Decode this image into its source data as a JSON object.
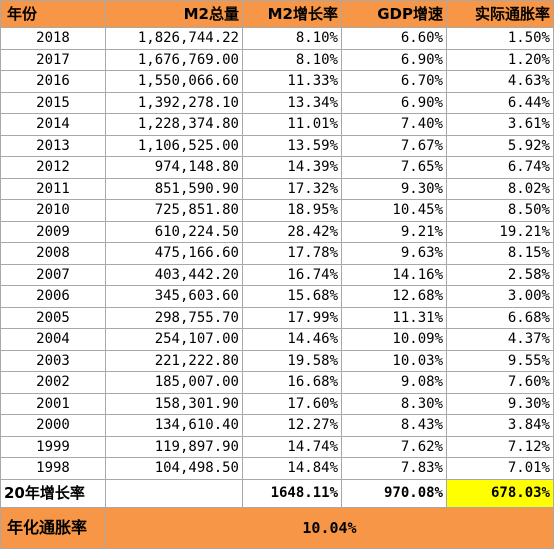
{
  "headers": [
    "年份",
    "M2总量",
    "M2增长率",
    "GDP增速",
    "实际通胀率"
  ],
  "rows": [
    [
      "2018",
      "1,826,744.22",
      "8.10%",
      "6.60%",
      "1.50%"
    ],
    [
      "2017",
      "1,676,769.00",
      "8.10%",
      "6.90%",
      "1.20%"
    ],
    [
      "2016",
      "1,550,066.60",
      "11.33%",
      "6.70%",
      "4.63%"
    ],
    [
      "2015",
      "1,392,278.10",
      "13.34%",
      "6.90%",
      "6.44%"
    ],
    [
      "2014",
      "1,228,374.80",
      "11.01%",
      "7.40%",
      "3.61%"
    ],
    [
      "2013",
      "1,106,525.00",
      "13.59%",
      "7.67%",
      "5.92%"
    ],
    [
      "2012",
      "974,148.80",
      "14.39%",
      "7.65%",
      "6.74%"
    ],
    [
      "2011",
      "851,590.90",
      "17.32%",
      "9.30%",
      "8.02%"
    ],
    [
      "2010",
      "725,851.80",
      "18.95%",
      "10.45%",
      "8.50%"
    ],
    [
      "2009",
      "610,224.50",
      "28.42%",
      "9.21%",
      "19.21%"
    ],
    [
      "2008",
      "475,166.60",
      "17.78%",
      "9.63%",
      "8.15%"
    ],
    [
      "2007",
      "403,442.20",
      "16.74%",
      "14.16%",
      "2.58%"
    ],
    [
      "2006",
      "345,603.60",
      "15.68%",
      "12.68%",
      "3.00%"
    ],
    [
      "2005",
      "298,755.70",
      "17.99%",
      "11.31%",
      "6.68%"
    ],
    [
      "2004",
      "254,107.00",
      "14.46%",
      "10.09%",
      "4.37%"
    ],
    [
      "2003",
      "221,222.80",
      "19.58%",
      "10.03%",
      "9.55%"
    ],
    [
      "2002",
      "185,007.00",
      "16.68%",
      "9.08%",
      "7.60%"
    ],
    [
      "2001",
      "158,301.90",
      "17.60%",
      "8.30%",
      "9.30%"
    ],
    [
      "2000",
      "134,610.40",
      "12.27%",
      "8.43%",
      "3.84%"
    ],
    [
      "1999",
      "119,897.90",
      "14.74%",
      "7.62%",
      "7.12%"
    ],
    [
      "1998",
      "104,498.50",
      "14.84%",
      "7.83%",
      "7.01%"
    ]
  ],
  "summary": {
    "label": "20年增长率",
    "m2_total": "",
    "m2_growth": "1648.11%",
    "gdp_growth": "970.08%",
    "inflation": "678.03%"
  },
  "annual": {
    "label": "年化通胀率",
    "value": "10.04%"
  },
  "colors": {
    "header_bg": "#f79646",
    "highlight": "#ffff00",
    "grid": "#a8a8a8"
  }
}
